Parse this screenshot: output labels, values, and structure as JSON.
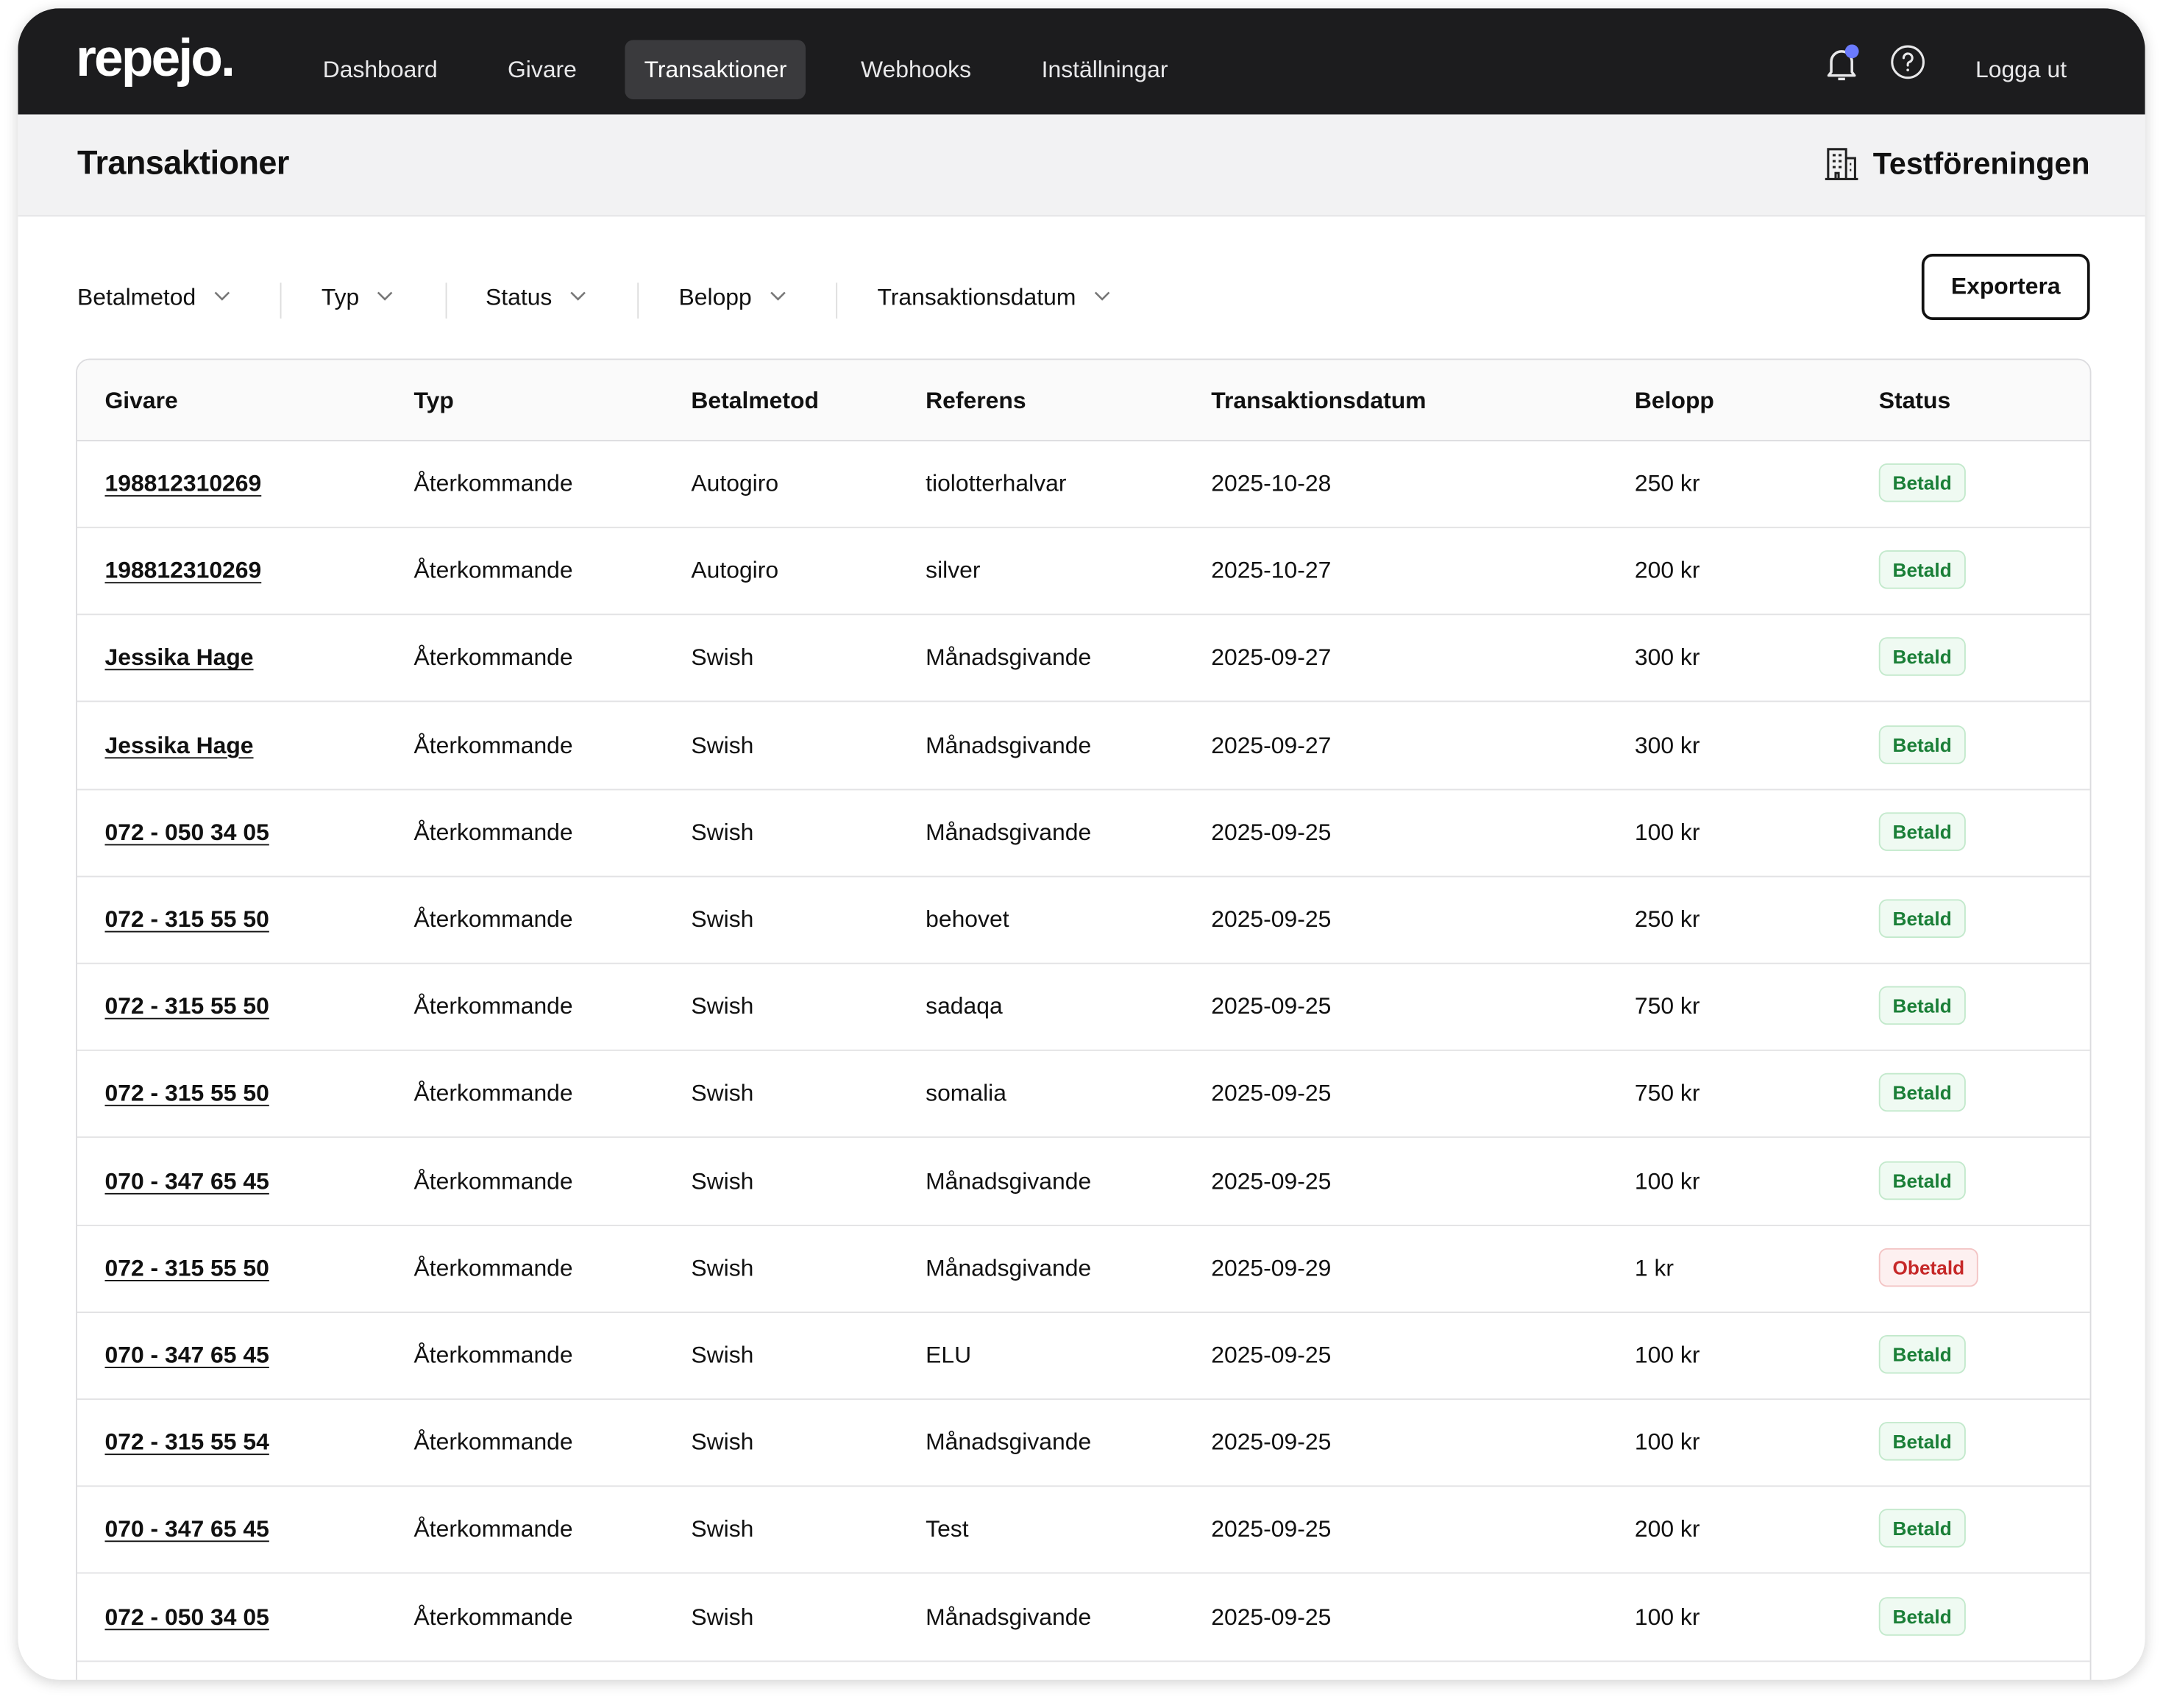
{
  "nav": {
    "logo": "repejo.",
    "items": [
      "Dashboard",
      "Givare",
      "Transaktioner",
      "Webhooks",
      "Inställningar"
    ],
    "logout": "Logga ut"
  },
  "header": {
    "title": "Transaktioner",
    "organization": "Testföreningen"
  },
  "filters": [
    "Betalmetod",
    "Typ",
    "Status",
    "Belopp",
    "Transaktionsdatum"
  ],
  "export": "Exportera",
  "table": {
    "columns": [
      "Givare",
      "Typ",
      "Betalmetod",
      "Referens",
      "Transaktionsdatum",
      "Belopp",
      "Status"
    ],
    "rows": [
      [
        "198812310269",
        "Återkommande",
        "Autogiro",
        "tiolotterhalvar",
        "2025-10-28",
        "250 kr",
        "Betald"
      ],
      [
        "198812310269",
        "Återkommande",
        "Autogiro",
        "silver",
        "2025-10-27",
        "200 kr",
        "Betald"
      ],
      [
        "Jessika Hage",
        "Återkommande",
        "Swish",
        "Månadsgivande",
        "2025-09-27",
        "300 kr",
        "Betald"
      ],
      [
        "Jessika Hage",
        "Återkommande",
        "Swish",
        "Månadsgivande",
        "2025-09-27",
        "300 kr",
        "Betald"
      ],
      [
        "072 - 050 34 05",
        "Återkommande",
        "Swish",
        "Månadsgivande",
        "2025-09-25",
        "100 kr",
        "Betald"
      ],
      [
        "072 - 315 55 50",
        "Återkommande",
        "Swish",
        "behovet",
        "2025-09-25",
        "250 kr",
        "Betald"
      ],
      [
        "072 - 315 55 50",
        "Återkommande",
        "Swish",
        "sadaqa",
        "2025-09-25",
        "750 kr",
        "Betald"
      ],
      [
        "072 - 315 55 50",
        "Återkommande",
        "Swish",
        "somalia",
        "2025-09-25",
        "750 kr",
        "Betald"
      ],
      [
        "070 - 347 65 45",
        "Återkommande",
        "Swish",
        "Månadsgivande",
        "2025-09-25",
        "100 kr",
        "Betald"
      ],
      [
        "072 - 315 55 50",
        "Återkommande",
        "Swish",
        "Månadsgivande",
        "2025-09-29",
        "1 kr",
        "Obetald"
      ],
      [
        "070 - 347 65 45",
        "Återkommande",
        "Swish",
        "ELU",
        "2025-09-25",
        "100 kr",
        "Betald"
      ],
      [
        "072 - 315 55 54",
        "Återkommande",
        "Swish",
        "Månadsgivande",
        "2025-09-25",
        "100 kr",
        "Betald"
      ],
      [
        "070 - 347 65 45",
        "Återkommande",
        "Swish",
        "Test",
        "2025-09-25",
        "200 kr",
        "Betald"
      ],
      [
        "072 - 050 34 05",
        "Återkommande",
        "Swish",
        "Månadsgivande",
        "2025-09-25",
        "100 kr",
        "Betald"
      ]
    ]
  }
}
